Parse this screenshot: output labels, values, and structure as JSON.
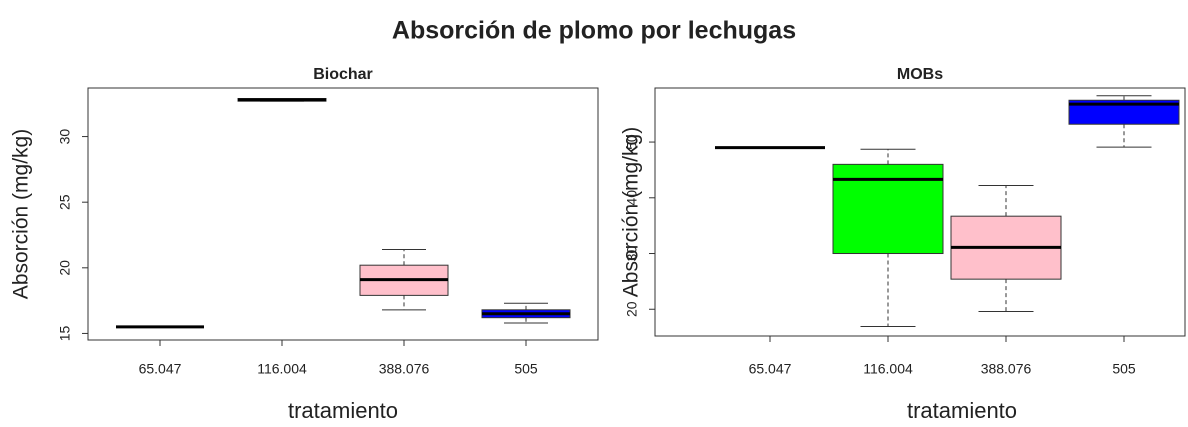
{
  "title": "Absorción de plomo por lechugas",
  "chart_data": [
    {
      "type": "box",
      "title": "Biochar",
      "xlabel": "tratamiento",
      "ylabel": "Absorción (mg/kg)",
      "categories": [
        "65.047",
        "116.004",
        "388.076",
        "505"
      ],
      "min": [
        15.5,
        32.7,
        16.8,
        15.8
      ],
      "q1": [
        15.5,
        32.7,
        17.9,
        16.2
      ],
      "median": [
        15.5,
        32.8,
        19.1,
        16.5
      ],
      "q3": [
        15.5,
        32.9,
        20.2,
        16.8
      ],
      "max": [
        15.5,
        32.9,
        21.4,
        17.3
      ],
      "colors": [
        "#ffffff",
        "#ffffff",
        "#ffc0cb",
        "#0000ff"
      ],
      "ylim": [
        14.5,
        33.7
      ],
      "yticks": [
        15,
        20,
        25,
        30
      ]
    },
    {
      "type": "box",
      "title": "MOBs",
      "xlabel": "tratamiento",
      "ylabel": "Absorción (mg/kg)",
      "categories": [
        "65.047",
        "116.004",
        "388.076",
        "505"
      ],
      "min": [
        49,
        16.9,
        19.6,
        49.1
      ],
      "q1": [
        49,
        30,
        25.4,
        53.2
      ],
      "median": [
        49,
        43.3,
        31.1,
        56.8
      ],
      "q3": [
        49,
        46,
        36.7,
        57.5
      ],
      "max": [
        49,
        48.7,
        42.2,
        58.3
      ],
      "colors": [
        "#ffffff",
        "#00ff00",
        "#ffc0cb",
        "#0000ff"
      ],
      "ylim": [
        15.2,
        59.7
      ],
      "yticks": [
        20,
        30,
        40,
        50
      ]
    }
  ]
}
